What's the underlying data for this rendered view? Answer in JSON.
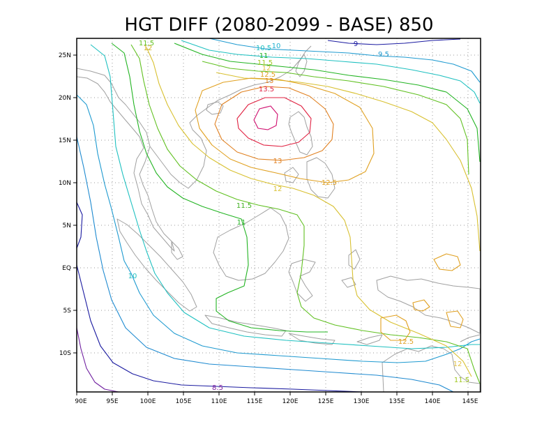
{
  "title": "HGT DIFF (2080-2099 - BASE) 850",
  "axes": {
    "x_ticks": [
      "90E",
      "95E",
      "100E",
      "105E",
      "110E",
      "115E",
      "120E",
      "125E",
      "130E",
      "135E",
      "140E",
      "145E"
    ],
    "y_ticks": [
      "25N",
      "20N",
      "15N",
      "10N",
      "5N",
      "EQ",
      "5S",
      "10S"
    ]
  },
  "contour_labels": [
    {
      "text": "9",
      "color": "#1a1aa0"
    },
    {
      "text": "9.5",
      "color": "#1e9ad0"
    },
    {
      "text": "10",
      "color": "#1eb0d0"
    },
    {
      "text": "10.5",
      "color": "#1ec0c0"
    },
    {
      "text": "11",
      "color": "#22b422"
    },
    {
      "text": "11.5",
      "color": "#60c020"
    },
    {
      "text": "12",
      "color": "#d0b020"
    },
    {
      "text": "11.5",
      "color": "#a0c820"
    },
    {
      "text": "12",
      "color": "#e0c040"
    },
    {
      "text": "12.5",
      "color": "#e0a020"
    },
    {
      "text": "13",
      "color": "#e08020"
    },
    {
      "text": "13.5",
      "color": "#e02040"
    },
    {
      "text": "13",
      "color": "#e08020"
    },
    {
      "text": "12.5",
      "color": "#e0a020"
    },
    {
      "text": "12",
      "color": "#d8c030"
    },
    {
      "text": "11.5",
      "color": "#40b020"
    },
    {
      "text": "11",
      "color": "#22b422"
    },
    {
      "text": "10",
      "color": "#1ec0c0"
    },
    {
      "text": "12.5",
      "color": "#e0a020"
    },
    {
      "text": "12",
      "color": "#e0c040"
    },
    {
      "text": "11.5",
      "color": "#a0c820"
    },
    {
      "text": "8.5",
      "color": "#8020a0"
    }
  ]
}
